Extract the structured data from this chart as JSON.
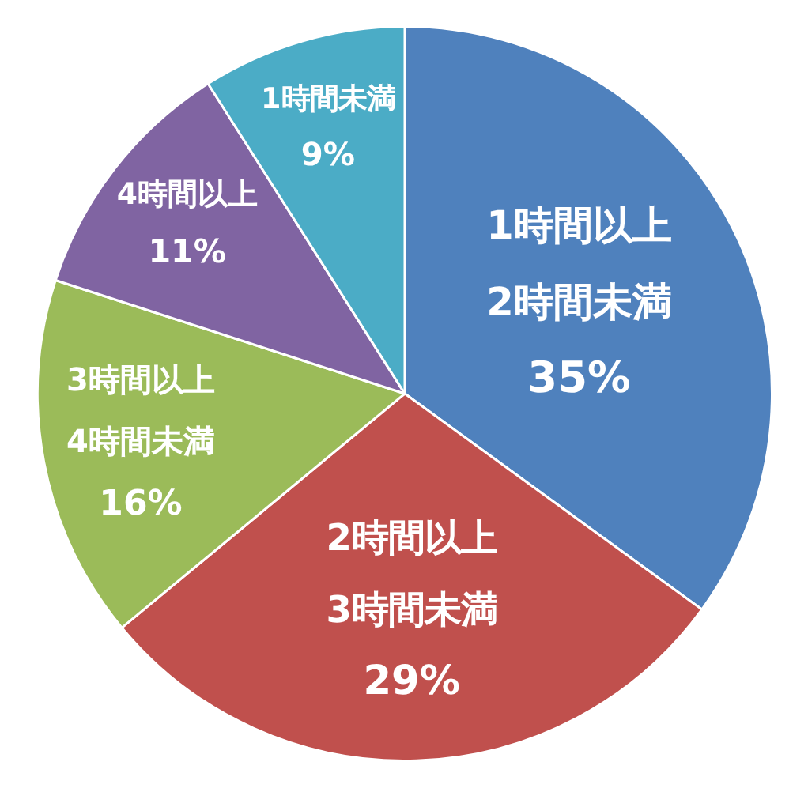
{
  "chart_data": {
    "type": "pie",
    "categories": [
      "1時間以上\n2時間未満",
      "2時間以上\n3時間未満",
      "3時間以上\n4時間未満",
      "4時間以上",
      "1時間未満"
    ],
    "values": [
      35,
      29,
      16,
      11,
      9
    ],
    "value_labels": [
      "35%",
      "29%",
      "16%",
      "11%",
      "9%"
    ],
    "colors": [
      "#4f81bd",
      "#c0504d",
      "#9bbb59",
      "#8064a2",
      "#4bacc6"
    ]
  }
}
